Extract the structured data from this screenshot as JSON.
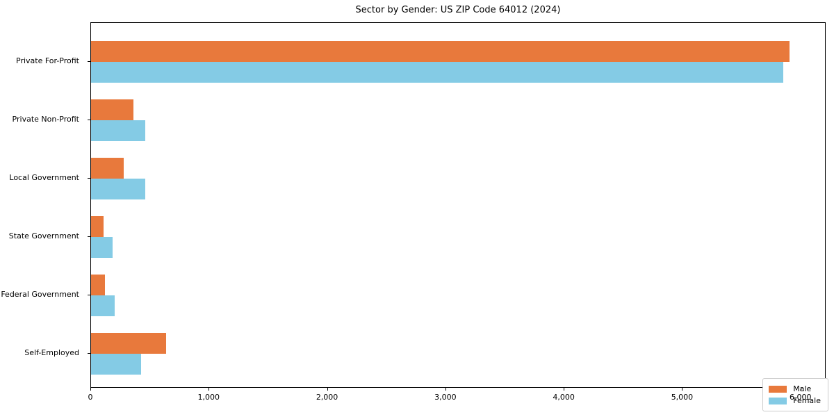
{
  "chart_data": {
    "type": "bar",
    "orientation": "horizontal",
    "title": "Sector by Gender: US ZIP Code 64012 (2024)",
    "categories": [
      "Private For-Profit",
      "Private Non-Profit",
      "Local Government",
      "State Government",
      "Federal Government",
      "Self-Employed"
    ],
    "series": [
      {
        "name": "Male",
        "color": "#E8793C",
        "values": [
          5900,
          360,
          275,
          105,
          120,
          635
        ]
      },
      {
        "name": "Female",
        "color": "#84CBE5",
        "values": [
          5850,
          460,
          460,
          180,
          200,
          425
        ]
      }
    ],
    "xlabel": "",
    "ylabel": "",
    "xlim": [
      0,
      6213
    ],
    "xticks": [
      {
        "value": 0,
        "label": "0"
      },
      {
        "value": 1000,
        "label": "1,000"
      },
      {
        "value": 2000,
        "label": "2,000"
      },
      {
        "value": 3000,
        "label": "3,000"
      },
      {
        "value": 4000,
        "label": "4,000"
      },
      {
        "value": 5000,
        "label": "5,000"
      },
      {
        "value": 6000,
        "label": "6,000"
      }
    ],
    "grid": false,
    "legend_position": "lower right"
  }
}
